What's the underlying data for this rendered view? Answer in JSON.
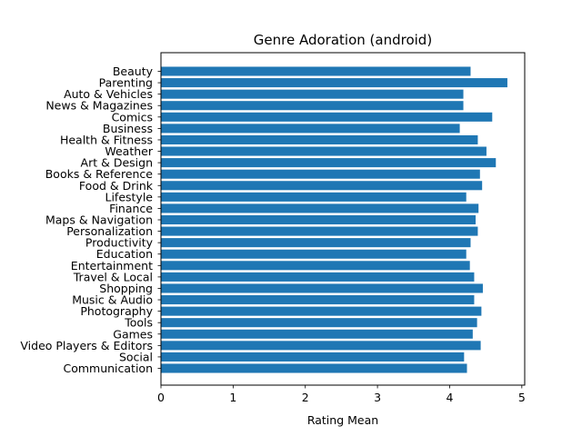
{
  "chart_data": {
    "type": "bar",
    "orientation": "horizontal",
    "title": "Genre Adoration (android)",
    "xlabel": "Rating Mean",
    "ylabel": "",
    "xlim": [
      0,
      5.04
    ],
    "xticks": [
      0,
      1,
      2,
      3,
      4,
      5
    ],
    "bar_color": "#1f77b4",
    "grid": false,
    "categories": [
      "Beauty",
      "Parenting",
      "Auto & Vehicles",
      "News & Magazines",
      "Comics",
      "Business",
      "Health & Fitness",
      "Weather",
      "Art & Design",
      "Books & Reference",
      "Food & Drink",
      "Lifestyle",
      "Finance",
      "Maps & Navigation",
      "Personalization",
      "Productivity",
      "Education",
      "Entertainment",
      "Travel & Local",
      "Shopping",
      "Music & Audio",
      "Photography",
      "Tools",
      "Games",
      "Video Players & Editors",
      "Social",
      "Communication"
    ],
    "values": [
      4.29,
      4.8,
      4.19,
      4.19,
      4.59,
      4.14,
      4.39,
      4.51,
      4.64,
      4.42,
      4.45,
      4.23,
      4.4,
      4.36,
      4.39,
      4.29,
      4.23,
      4.28,
      4.34,
      4.46,
      4.34,
      4.44,
      4.38,
      4.32,
      4.43,
      4.2,
      4.24
    ]
  }
}
